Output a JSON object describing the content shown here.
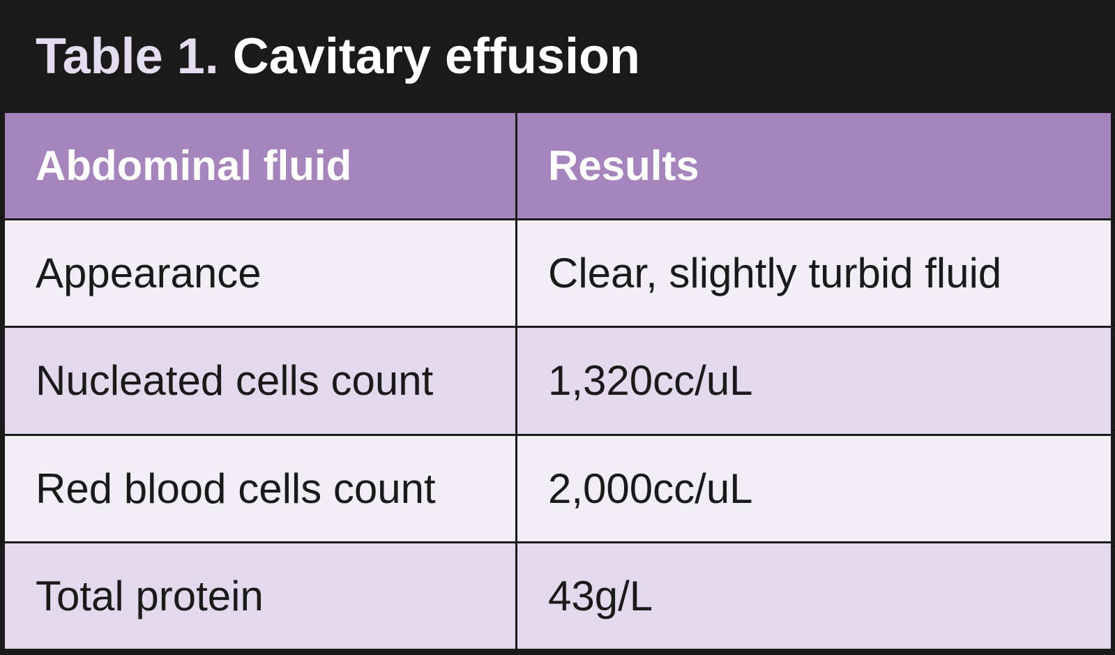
{
  "title": {
    "label": "Table 1.",
    "text": "Cavitary effusion"
  },
  "table": {
    "header": [
      "Abdominal fluid",
      "Results"
    ],
    "rows": [
      [
        "Appearance",
        "Clear, slightly turbid fluid"
      ],
      [
        "Nucleated cells count",
        "1,320cc/uL"
      ],
      [
        "Red blood cells count",
        "2,000cc/uL"
      ],
      [
        "Total protein",
        "43g/L"
      ]
    ]
  }
}
